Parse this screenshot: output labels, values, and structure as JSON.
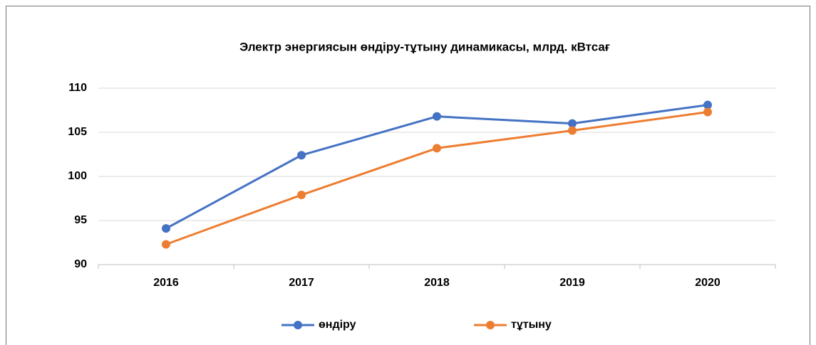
{
  "chart_data": {
    "type": "line",
    "title": "Электр энергиясын өндіру-тұтыну динамикасы, млрд. кВтсағ",
    "categories": [
      "2016",
      "2017",
      "2018",
      "2019",
      "2020"
    ],
    "series": [
      {
        "name": "өндіру",
        "color": "#4472c4",
        "values": [
          94.1,
          102.4,
          106.8,
          106.0,
          108.1
        ]
      },
      {
        "name": "тұтыну",
        "color": "#ed7d31",
        "values": [
          92.3,
          97.9,
          103.2,
          105.2,
          107.3
        ]
      }
    ],
    "ylim": [
      90,
      110
    ],
    "yticks": [
      90,
      95,
      100,
      105,
      110
    ],
    "grid": true,
    "legend": "bottom"
  }
}
